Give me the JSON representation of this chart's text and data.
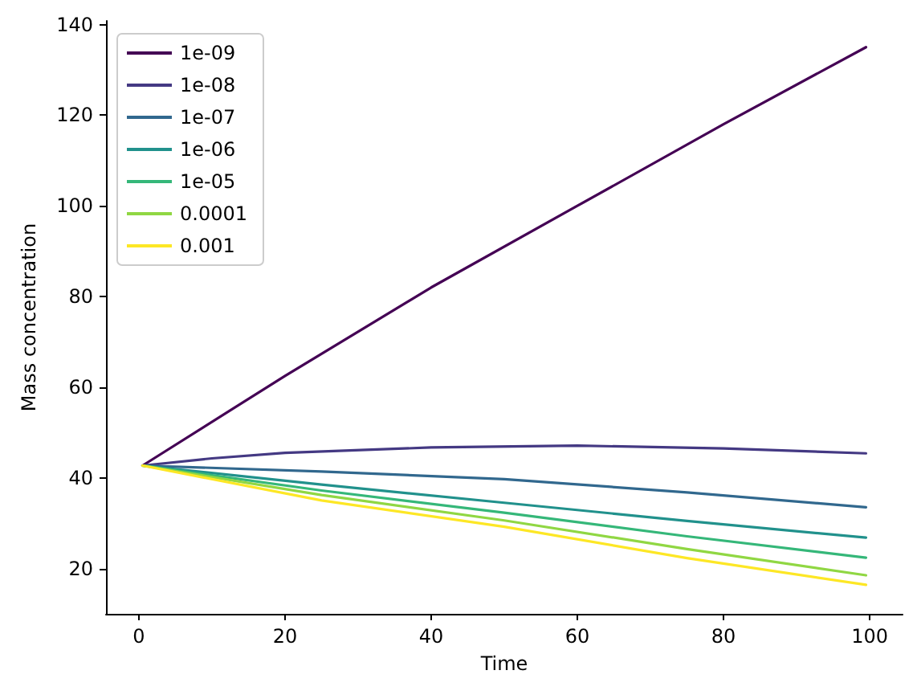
{
  "chart_data": {
    "type": "line",
    "xlabel": "Time",
    "ylabel": "Mass concentration",
    "xlim": [
      -4.5,
      104.5
    ],
    "ylim": [
      10,
      140.8
    ],
    "xticks": [
      0,
      20,
      40,
      60,
      80,
      100
    ],
    "yticks": [
      20,
      40,
      60,
      80,
      100,
      120,
      140
    ],
    "grid": false,
    "legend": "top left",
    "marker": "none",
    "line_style": "solid",
    "series": [
      {
        "name": "1e-09",
        "color": "#440154",
        "x": [
          0.5,
          20,
          40,
          60,
          80,
          99.5
        ],
        "values": [
          42.7,
          62.5,
          82,
          100,
          118,
          135
        ]
      },
      {
        "name": "1e-08",
        "color": "#443983",
        "x": [
          0.5,
          10,
          20,
          40,
          60,
          80,
          99.5
        ],
        "values": [
          42.7,
          44.3,
          45.5,
          46.7,
          47.1,
          46.5,
          45.4
        ]
      },
      {
        "name": "1e-07",
        "color": "#31688e",
        "x": [
          0.5,
          25,
          50,
          75,
          99.5
        ],
        "values": [
          42.7,
          41.4,
          39.7,
          36.8,
          33.5
        ]
      },
      {
        "name": "1e-06",
        "color": "#21918c",
        "x": [
          0.5,
          25,
          50,
          75,
          99.5
        ],
        "values": [
          42.7,
          38.5,
          34.5,
          30.5,
          26.8
        ]
      },
      {
        "name": "1e-05",
        "color": "#35b779",
        "x": [
          0.5,
          25,
          50,
          75,
          99.5
        ],
        "values": [
          42.7,
          37.2,
          32.3,
          27.1,
          22.4
        ]
      },
      {
        "name": "0.0001",
        "color": "#90d743",
        "x": [
          0.5,
          25,
          50,
          75,
          99.5
        ],
        "values": [
          42.7,
          36.2,
          30.6,
          24.3,
          18.5
        ]
      },
      {
        "name": "0.001",
        "color": "#fde725",
        "x": [
          0.5,
          25,
          50,
          75,
          99.5
        ],
        "values": [
          42.7,
          35.0,
          29.2,
          22.3,
          16.4
        ]
      }
    ]
  }
}
